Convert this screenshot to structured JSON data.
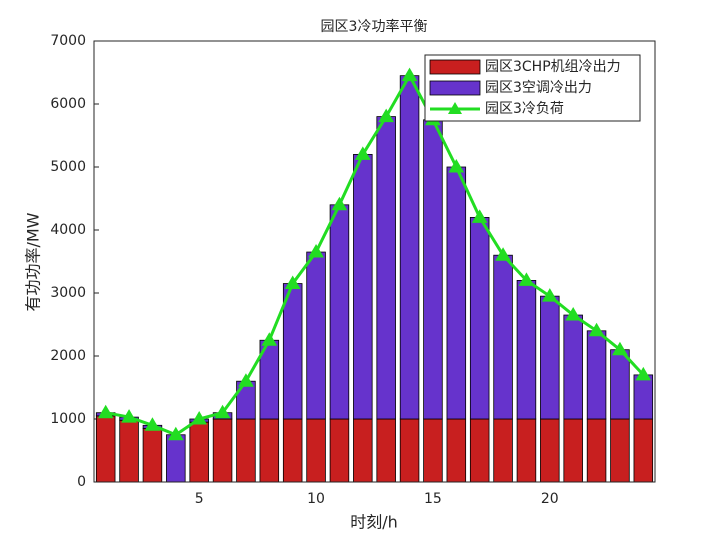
{
  "chart_data": {
    "type": "bar",
    "title": "园区3冷功率平衡",
    "xlabel": "时刻/h",
    "ylabel": "有功功率/MW",
    "x": [
      1,
      2,
      3,
      4,
      5,
      6,
      7,
      8,
      9,
      10,
      11,
      12,
      13,
      14,
      15,
      16,
      17,
      18,
      19,
      20,
      21,
      22,
      23,
      24
    ],
    "stacked": true,
    "legend": "northeast",
    "series": [
      {
        "name": "园区3CHP机组冷出力",
        "type": "bar",
        "color": "#c81f1f",
        "values": [
          1050,
          980,
          850,
          0,
          950,
          1000,
          1000,
          1000,
          1000,
          1000,
          1000,
          1000,
          1000,
          1000,
          1000,
          1000,
          1000,
          1000,
          1000,
          1000,
          1000,
          1000,
          1000,
          1000
        ]
      },
      {
        "name": "园区3空调冷出力",
        "type": "bar",
        "color": "#6633cc",
        "values": [
          50,
          50,
          50,
          750,
          50,
          100,
          600,
          1250,
          2150,
          2650,
          3400,
          4200,
          4800,
          5450,
          4750,
          4000,
          3200,
          2600,
          2200,
          1950,
          1650,
          1400,
          1100,
          700
        ]
      },
      {
        "name": "园区3冷负荷",
        "type": "line",
        "color": "#22dd22",
        "values": [
          1100,
          1030,
          900,
          750,
          1000,
          1100,
          1600,
          2250,
          3150,
          3650,
          4400,
          5200,
          5800,
          6450,
          5750,
          5000,
          4200,
          3600,
          3200,
          2950,
          2650,
          2400,
          2100,
          1700
        ]
      }
    ],
    "xlim": [
      0.5,
      24.5
    ],
    "xticks": [
      5,
      10,
      15,
      20
    ],
    "ylim": [
      0,
      7000
    ],
    "yticks": [
      0,
      1000,
      2000,
      3000,
      4000,
      5000,
      6000,
      7000
    ]
  }
}
